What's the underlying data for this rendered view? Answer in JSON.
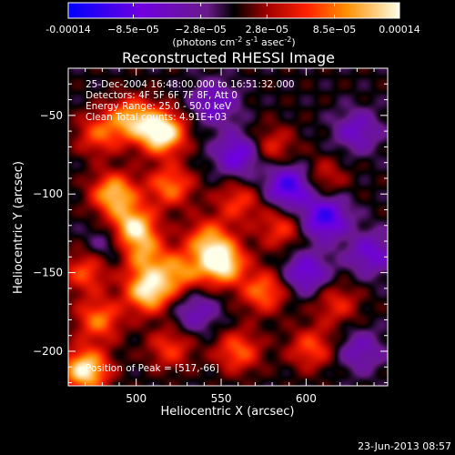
{
  "chart_data": {
    "type": "heatmap",
    "title": "Reconstructed RHESSI Image",
    "xlabel": "Heliocentric X (arcsec)",
    "ylabel": "Heliocentric Y (arcsec)",
    "xlim": [
      460,
      648
    ],
    "ylim": [
      -222,
      -20
    ],
    "x_ticks": [
      500,
      550,
      600
    ],
    "y_ticks": [
      -50,
      -100,
      -150,
      -200
    ],
    "colorbar": {
      "label": "(photons cm",
      "label_sup1": "-2",
      "label_mid": " s",
      "label_sup2": "-1",
      "label_end": " asec",
      "label_sup3": "-2",
      "label_close": ")",
      "min": -0.00014,
      "max": 0.00014,
      "tick_labels": [
        "-0.00014",
        "−8.5e−05",
        "−2.8e−05",
        "2.8e−05",
        "8.5e−05",
        "0.00014"
      ],
      "tick_values": [
        -0.00014,
        -8.5e-05,
        -2.8e-05,
        2.8e-05,
        8.5e-05,
        0.00014
      ]
    },
    "info_lines": [
      "25-Dec-2004 16:48:00.000 to 16:51:32.000",
      "Detectors: 4F 5F 6F 7F 8F, Att 0",
      "Energy Range: 25.0 - 50.0 keV",
      "Clean     Total counts: 4.91E+03"
    ],
    "peak_label": "Position of Peak = [517,-66]",
    "footer_date": "23-Jun-2013 08:57",
    "sources": [
      {
        "x": 515,
        "y": -61,
        "v": 1.0
      },
      {
        "x": 497,
        "y": -52,
        "v": 0.65
      },
      {
        "x": 478,
        "y": -62,
        "v": 0.45
      },
      {
        "x": 520,
        "y": -95,
        "v": 0.55
      },
      {
        "x": 487,
        "y": -100,
        "v": 0.75
      },
      {
        "x": 498,
        "y": -122,
        "v": 0.9
      },
      {
        "x": 542,
        "y": -129,
        "v": 0.55
      },
      {
        "x": 550,
        "y": -144,
        "v": 0.95
      },
      {
        "x": 507,
        "y": -162,
        "v": 0.85
      },
      {
        "x": 525,
        "y": -150,
        "v": 0.55
      },
      {
        "x": 575,
        "y": -162,
        "v": 0.55
      },
      {
        "x": 505,
        "y": -140,
        "v": 0.5
      },
      {
        "x": 560,
        "y": -105,
        "v": 0.4
      },
      {
        "x": 585,
        "y": -122,
        "v": 0.4
      },
      {
        "x": 618,
        "y": -170,
        "v": 0.35
      },
      {
        "x": 603,
        "y": -198,
        "v": 0.45
      },
      {
        "x": 560,
        "y": -200,
        "v": 0.5
      },
      {
        "x": 520,
        "y": -198,
        "v": 0.4
      },
      {
        "x": 478,
        "y": -180,
        "v": 0.55
      },
      {
        "x": 470,
        "y": -150,
        "v": 0.45
      },
      {
        "x": 580,
        "y": -70,
        "v": 0.35
      },
      {
        "x": 610,
        "y": -90,
        "v": 0.3
      },
      {
        "x": 470,
        "y": -212,
        "v": 0.9
      },
      {
        "x": 590,
        "y": -95,
        "v": -0.7
      },
      {
        "x": 611,
        "y": -115,
        "v": -0.7
      },
      {
        "x": 560,
        "y": -75,
        "v": -0.55
      },
      {
        "x": 600,
        "y": -150,
        "v": -0.5
      },
      {
        "x": 630,
        "y": -60,
        "v": -0.4
      },
      {
        "x": 638,
        "y": -138,
        "v": -0.45
      },
      {
        "x": 632,
        "y": -200,
        "v": -0.35
      },
      {
        "x": 535,
        "y": -175,
        "v": -0.35
      },
      {
        "x": 546,
        "y": -42,
        "v": -0.45
      },
      {
        "x": 486,
        "y": -130,
        "v": -0.3
      }
    ]
  }
}
